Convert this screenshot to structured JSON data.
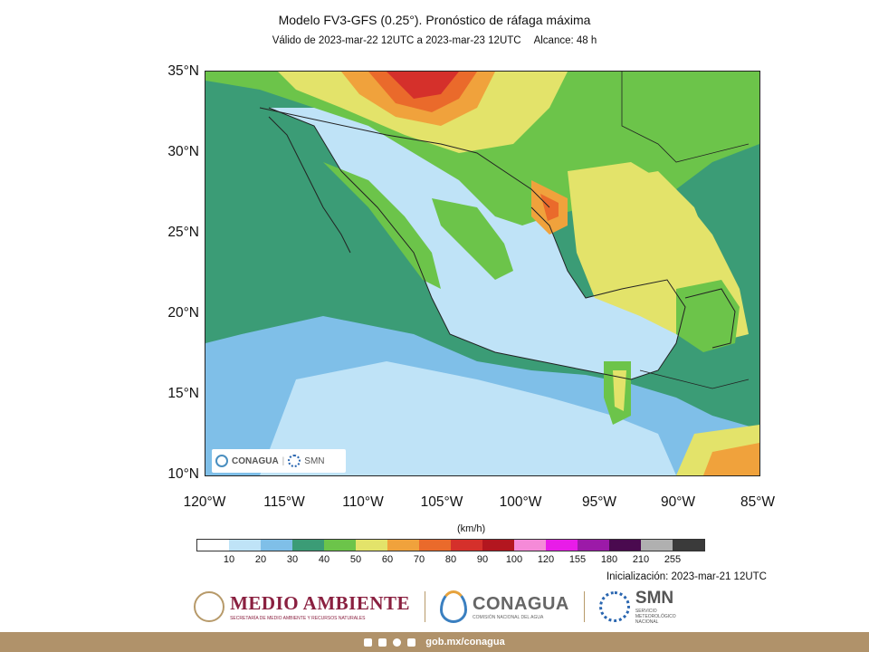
{
  "header": {
    "title": "Modelo FV3-GFS (0.25°). Pronóstico de ráfaga máxima",
    "validity": "Válido de 2023-mar-22 12UTC a 2023-mar-23 12UTC",
    "range": "Alcance: 48 h"
  },
  "map": {
    "lat_ticks": [
      "35°N",
      "30°N",
      "25°N",
      "20°N",
      "15°N",
      "10°N"
    ],
    "lon_ticks": [
      "120°W",
      "115°W",
      "110°W",
      "105°W",
      "100°W",
      "95°W",
      "90°W",
      "85°W"
    ],
    "watermark": {
      "conagua": "CONAGUA",
      "smn": "SMN"
    }
  },
  "legend": {
    "units": "(km/h)",
    "ticks": [
      "10",
      "20",
      "30",
      "40",
      "50",
      "60",
      "70",
      "80",
      "90",
      "100",
      "120",
      "155",
      "180",
      "210",
      "255"
    ],
    "colors": [
      "#ffffff",
      "#bfe3f7",
      "#7fbfe8",
      "#3b9c76",
      "#6cc44a",
      "#e3e36a",
      "#f0a23c",
      "#ea6a2b",
      "#d5302b",
      "#b3161f",
      "#f58ad8",
      "#e81ce8",
      "#9c1aa8",
      "#4a0a4f",
      "#b0b0b0",
      "#3a3a3a"
    ]
  },
  "init": "Inicialización: 2023-mar-21 12UTC",
  "footer": {
    "medio_ambiente": "MEDIO AMBIENTE",
    "medio_ambiente_sub": "SECRETARÍA DE MEDIO AMBIENTE Y RECURSOS NATURALES",
    "conagua": "CONAGUA",
    "conagua_sub": "COMISIÓN NACIONAL DEL AGUA",
    "smn": "SMN",
    "smn_sub": "SERVICIO METEOROLÓGICO NACIONAL",
    "url": "gob.mx/conagua"
  }
}
